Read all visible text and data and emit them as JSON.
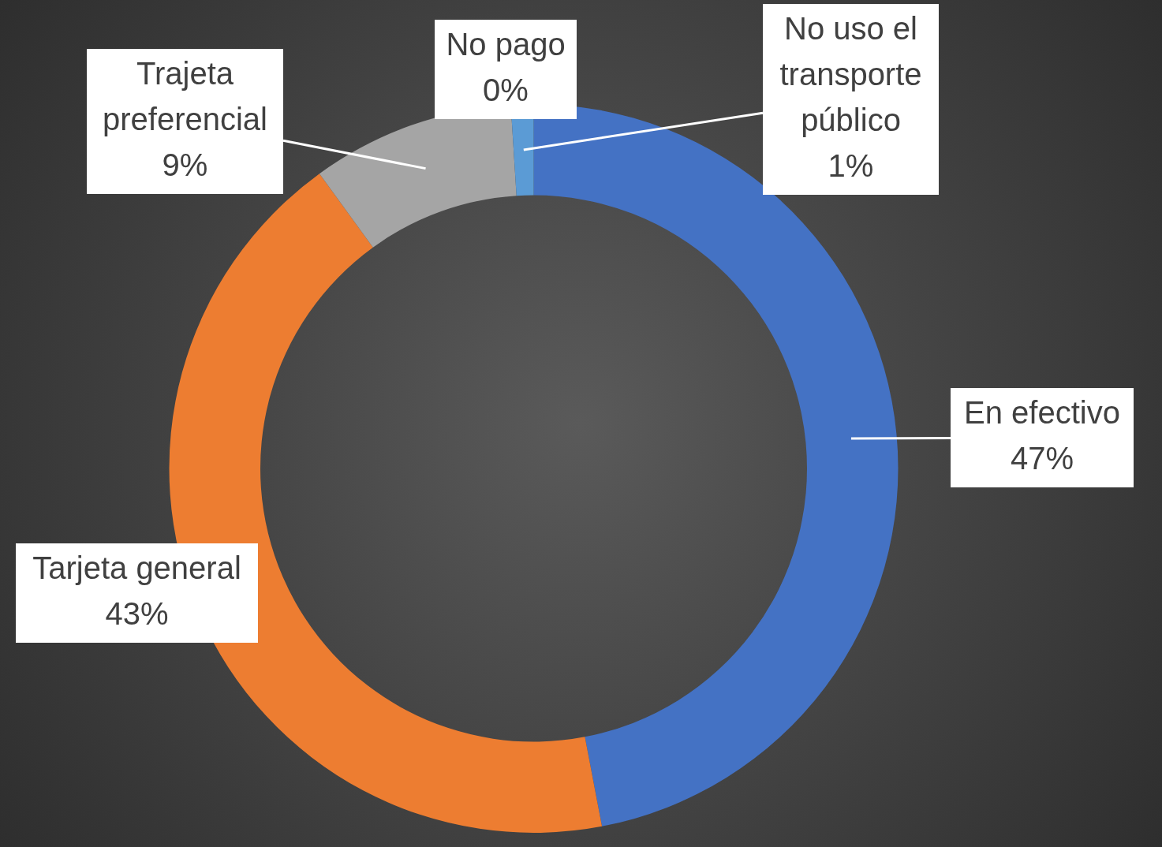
{
  "chart_data": {
    "type": "donut",
    "categories": [
      "En efectivo",
      "Tarjeta general",
      "Trajeta preferencial",
      "No pago",
      "No uso el transporte público"
    ],
    "values": [
      47,
      43,
      9,
      0,
      1
    ],
    "colors": [
      "#4472c4",
      "#ed7d31",
      "#a5a5a5",
      "#ffc000",
      "#5b9bd5"
    ],
    "value_labels": [
      "47%",
      "43%",
      "9%",
      "0%",
      "1%"
    ],
    "legend": false
  }
}
